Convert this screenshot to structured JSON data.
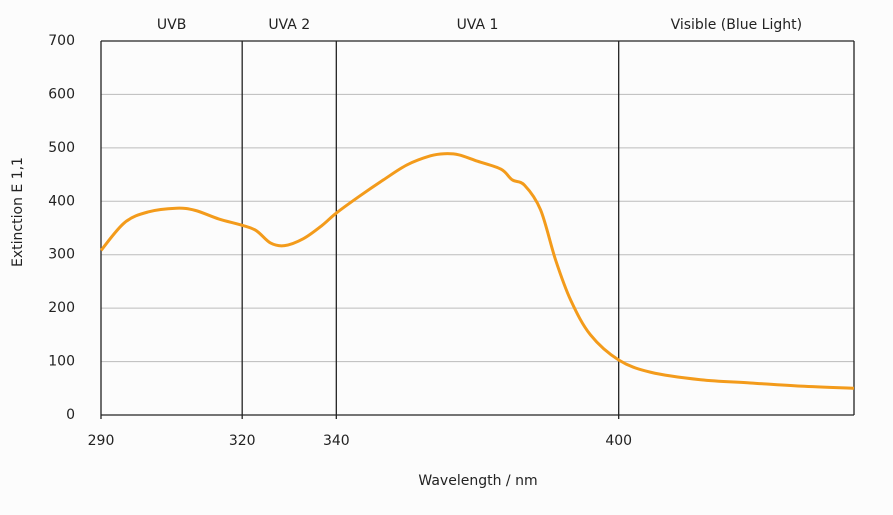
{
  "chart_data": {
    "type": "line",
    "x_label": "Wavelength / nm",
    "y_label": "Extinction E 1,1",
    "regions": [
      {
        "label": "UVB",
        "start": 290,
        "end": 320
      },
      {
        "label": "UVA 2",
        "start": 320,
        "end": 340
      },
      {
        "label": "UVA 1",
        "start": 340,
        "end": 400
      },
      {
        "label": "Visible (Blue Light)",
        "start": 400,
        "end": 450
      }
    ],
    "x": [
      290,
      295,
      300,
      306,
      310,
      315,
      320,
      323,
      326,
      329,
      333,
      337,
      340,
      345,
      350,
      355,
      360,
      363,
      366,
      370,
      375,
      377.4,
      380,
      383.4,
      386.6,
      389.8,
      394,
      400,
      406.8,
      417.4,
      428,
      438.7,
      450
    ],
    "series": [
      {
        "name": "Extinction",
        "color": "#f39b1b",
        "values": [
          308,
          360,
          380,
          387,
          383,
          367,
          355,
          345,
          322,
          317,
          330,
          355,
          378,
          410,
          440,
          468,
          485,
          489,
          487,
          475,
          460,
          440,
          430,
          384,
          290,
          215,
          150,
          103,
          80,
          66,
          60,
          54,
          50
        ]
      }
    ],
    "xlim": [
      290,
      450
    ],
    "xticks": [
      290,
      320,
      340,
      400
    ],
    "ylim": [
      0,
      700
    ],
    "yticks": [
      0,
      100,
      200,
      300,
      400,
      500,
      600,
      700
    ],
    "grid": true
  }
}
